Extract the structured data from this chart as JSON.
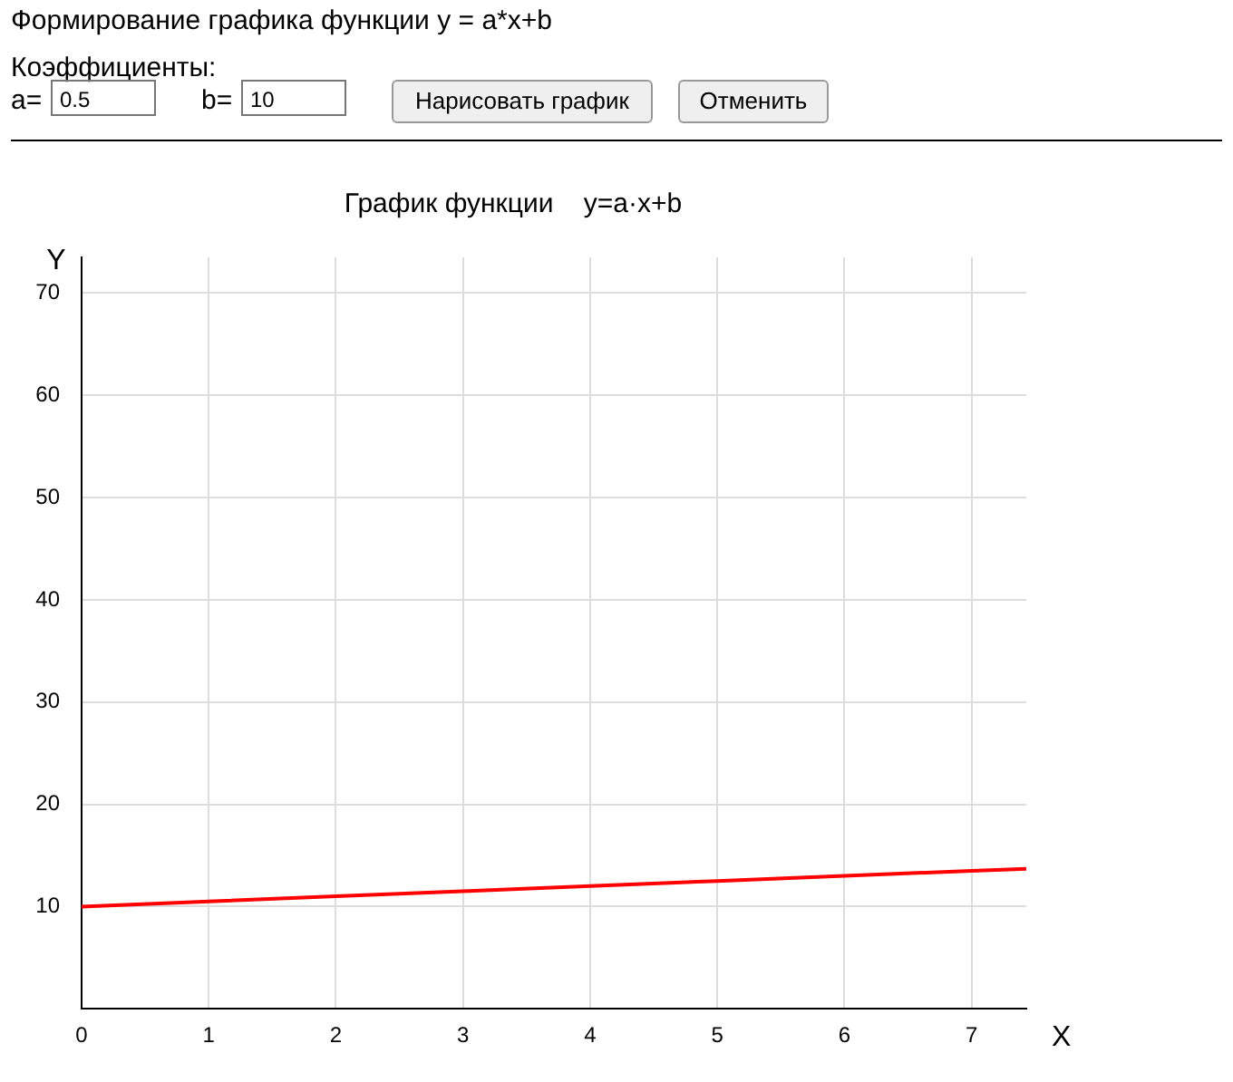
{
  "chart_data": {
    "type": "line",
    "title": "График функции    y=a·x+b",
    "xlabel": "X",
    "ylabel": "Y",
    "annotations": [
      "Формирование графика функции y = a*x+b",
      "Коэффициенты:",
      "a=",
      "0.5",
      "b=",
      "10",
      "Нарисовать график",
      "Отменить"
    ],
    "x": [
      0,
      1,
      2,
      3,
      4,
      5,
      6,
      7,
      7.43
    ],
    "series": [
      {
        "color": "#ff0000",
        "values": [
          10,
          10.5,
          11,
          11.5,
          12,
          12.5,
          13,
          13.5,
          13.7
        ]
      }
    ],
    "xlim": [
      0,
      7.43
    ],
    "xticks": [
      0,
      1,
      2,
      3,
      4,
      5,
      6,
      7
    ],
    "ylim": [
      0,
      73.5
    ],
    "yticks": [
      10,
      20,
      30,
      40,
      50,
      60,
      70
    ],
    "grid": true,
    "legend": false,
    "marker": "none",
    "line_style": "solid"
  }
}
